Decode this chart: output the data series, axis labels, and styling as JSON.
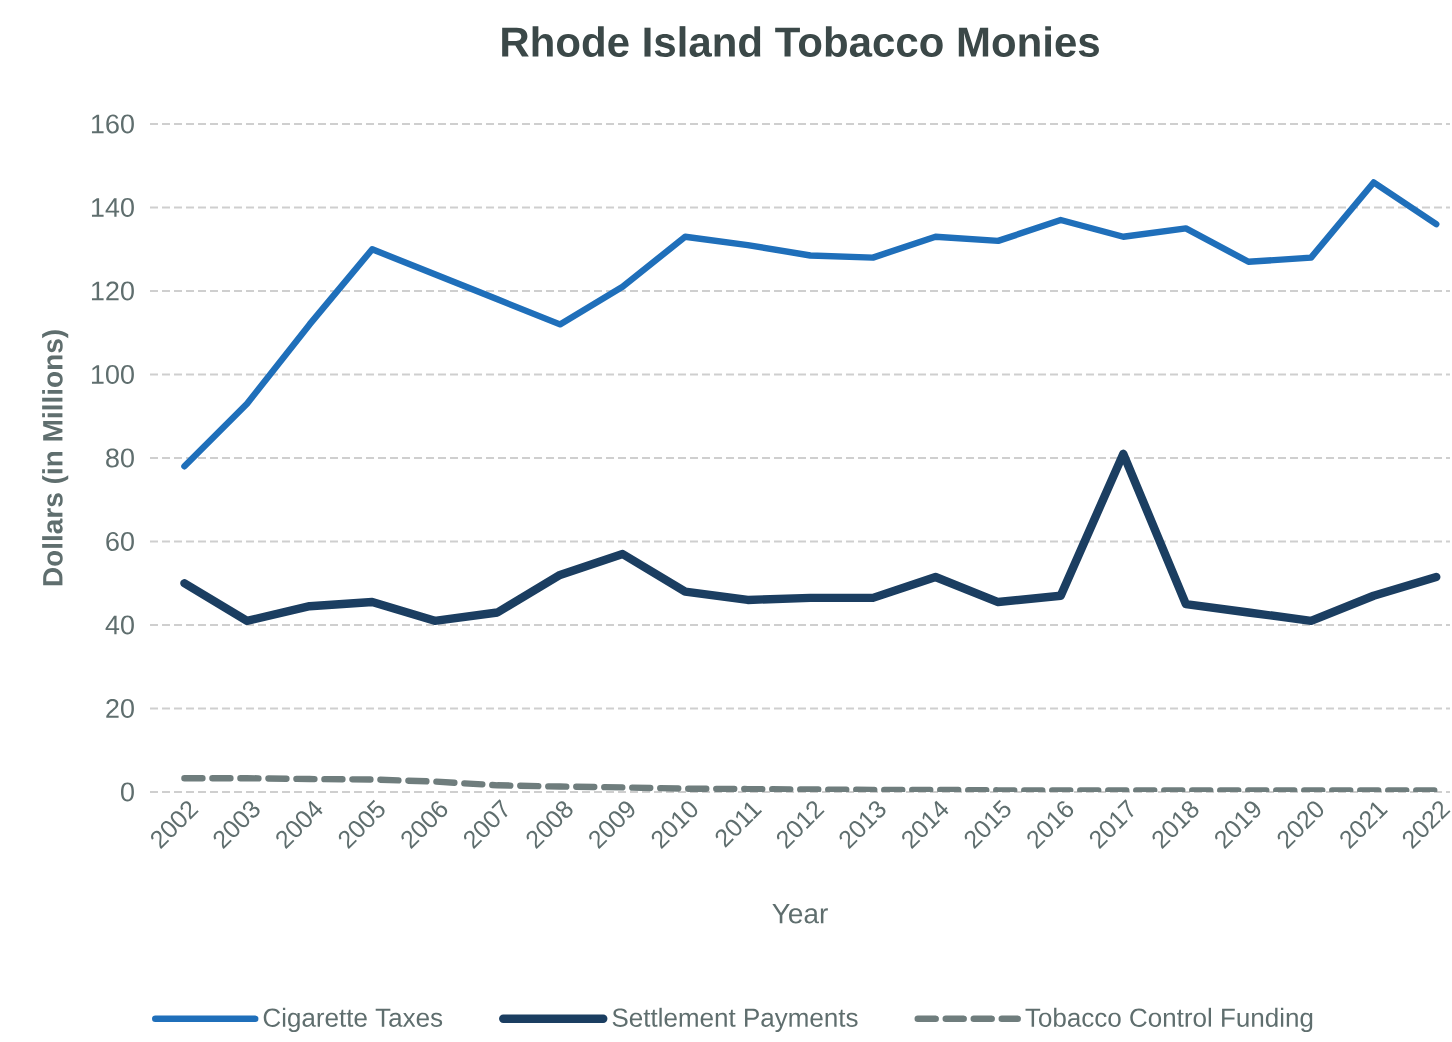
{
  "chart_data": {
    "type": "line",
    "title": "Rhode Island Tobacco Monies",
    "xlabel": "Year",
    "ylabel": "Dollars (in Millions)",
    "categories": [
      "2002",
      "2003",
      "2004",
      "2005",
      "2006",
      "2007",
      "2008",
      "2009",
      "2010",
      "2011",
      "2012",
      "2013",
      "2014",
      "2015",
      "2016",
      "2017",
      "2018",
      "2019",
      "2020",
      "2021",
      "2022"
    ],
    "series": [
      {
        "name": "Cigarette Taxes",
        "color": "#1f6fba",
        "values": [
          78,
          93,
          112,
          130,
          124,
          118,
          112,
          121,
          133,
          131,
          128.5,
          128,
          133,
          132,
          137,
          133,
          135,
          127,
          128,
          146,
          136
        ]
      },
      {
        "name": "Settlement Payments",
        "color": "#1b3e61",
        "values": [
          50,
          41,
          44.5,
          45.5,
          41,
          43,
          52,
          57,
          48,
          46,
          46.5,
          46.5,
          51.5,
          45.5,
          47,
          81,
          45,
          43,
          41,
          47,
          51.5
        ]
      },
      {
        "name": "Tobacco Control Funding",
        "color": "#6f7d7d",
        "line_style": "dashed",
        "values": [
          3.3,
          3.3,
          3.1,
          3,
          2.5,
          1.6,
          1.3,
          1.1,
          0.8,
          0.7,
          0.6,
          0.5,
          0.5,
          0.4,
          0.4,
          0.4,
          0.4,
          0.4,
          0.4,
          0.4,
          0.4
        ]
      }
    ],
    "ylim": [
      0,
      160
    ],
    "yticks": [
      0,
      20,
      40,
      60,
      80,
      100,
      120,
      140,
      160
    ],
    "grid": "y",
    "legend": "bottom",
    "marker": "none"
  }
}
